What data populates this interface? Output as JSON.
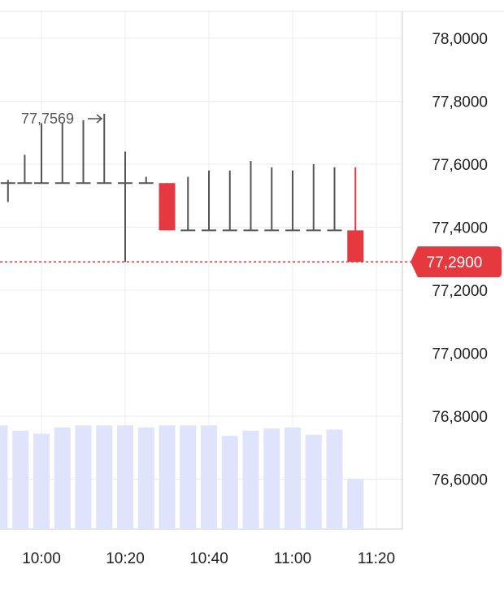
{
  "chart_data": {
    "type": "candlestick",
    "price_axis": {
      "ticks": [
        "78,0000",
        "77,8000",
        "77,6000",
        "77,4000",
        "77,2000",
        "77,0000",
        "76,8000",
        "76,6000"
      ],
      "tick_values": [
        78.0,
        77.8,
        77.6,
        77.4,
        77.2,
        77.0,
        76.8,
        76.6
      ],
      "range": [
        76.45,
        78.08
      ]
    },
    "time_axis": {
      "ticks": [
        "10:00",
        "10:20",
        "10:40",
        "11:00",
        "11:20"
      ]
    },
    "high_annotation": "77,7569",
    "last_price": {
      "label": "77,2900",
      "value": 77.29,
      "color": "#e5393f"
    },
    "candles": [
      {
        "time": "09:52",
        "open": 77.54,
        "high": 77.55,
        "low": 77.48,
        "close": 77.54
      },
      {
        "time": "09:56",
        "open": 77.54,
        "high": 77.63,
        "low": 77.54,
        "close": 77.54
      },
      {
        "time": "10:00",
        "open": 77.54,
        "high": 77.73,
        "low": 77.54,
        "close": 77.54
      },
      {
        "time": "10:05",
        "open": 77.54,
        "high": 77.73,
        "low": 77.54,
        "close": 77.54
      },
      {
        "time": "10:10",
        "open": 77.54,
        "high": 77.74,
        "low": 77.54,
        "close": 77.54
      },
      {
        "time": "10:15",
        "open": 77.54,
        "high": 77.76,
        "low": 77.54,
        "close": 77.54
      },
      {
        "time": "10:20",
        "open": 77.54,
        "high": 77.64,
        "low": 77.29,
        "close": 77.54
      },
      {
        "time": "10:25",
        "open": 77.54,
        "high": 77.56,
        "low": 77.54,
        "close": 77.54
      },
      {
        "time": "10:30",
        "open": 77.54,
        "high": 77.54,
        "low": 77.39,
        "close": 77.39
      },
      {
        "time": "10:35",
        "open": 77.39,
        "high": 77.56,
        "low": 77.39,
        "close": 77.39
      },
      {
        "time": "10:40",
        "open": 77.39,
        "high": 77.58,
        "low": 77.39,
        "close": 77.39
      },
      {
        "time": "10:45",
        "open": 77.39,
        "high": 77.58,
        "low": 77.39,
        "close": 77.39
      },
      {
        "time": "10:50",
        "open": 77.39,
        "high": 77.61,
        "low": 77.39,
        "close": 77.39
      },
      {
        "time": "10:55",
        "open": 77.39,
        "high": 77.59,
        "low": 77.39,
        "close": 77.39
      },
      {
        "time": "11:00",
        "open": 77.39,
        "high": 77.58,
        "low": 77.39,
        "close": 77.39
      },
      {
        "time": "11:05",
        "open": 77.39,
        "high": 77.6,
        "low": 77.39,
        "close": 77.39
      },
      {
        "time": "11:10",
        "open": 77.39,
        "high": 77.59,
        "low": 77.39,
        "close": 77.39
      },
      {
        "time": "11:15",
        "open": 77.39,
        "high": 77.59,
        "low": 77.29,
        "close": 77.29
      }
    ],
    "volume": {
      "color": "#dfe3fb",
      "times": [
        "09:50",
        "09:55",
        "10:00",
        "10:05",
        "10:10",
        "10:15",
        "10:20",
        "10:25",
        "10:30",
        "10:35",
        "10:40",
        "10:45",
        "10:50",
        "10:55",
        "11:00",
        "11:05",
        "11:10",
        "11:15"
      ],
      "values": [
        0.99,
        0.94,
        0.91,
        0.97,
        0.99,
        0.99,
        0.99,
        0.97,
        0.99,
        0.99,
        0.99,
        0.89,
        0.94,
        0.96,
        0.97,
        0.9,
        0.95,
        0.48
      ]
    },
    "colors": {
      "up_neutral": "#555555",
      "down": "#e5393f",
      "grid": "#ececec",
      "axis_line": "#cccccc"
    },
    "grid": true
  }
}
